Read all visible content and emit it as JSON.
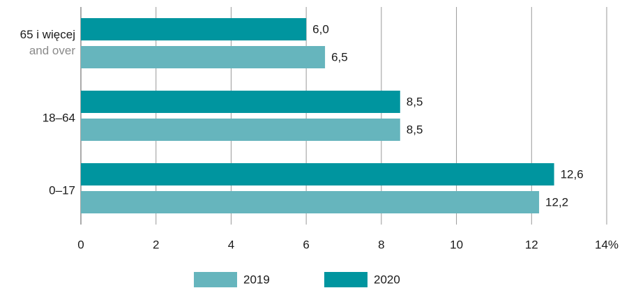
{
  "chart_data": {
    "type": "hbar",
    "categories": [
      [
        "65 i więcej",
        "and over"
      ],
      [
        "18–64"
      ],
      [
        "0–17"
      ]
    ],
    "series": [
      {
        "name": "2020",
        "color": "#00959f",
        "values": [
          6.0,
          8.5,
          12.6
        ],
        "value_labels": [
          "6,0",
          "8,5",
          "12,6"
        ]
      },
      {
        "name": "2019",
        "color": "#66b5bd",
        "values": [
          6.5,
          8.5,
          12.2
        ],
        "value_labels": [
          "6,5",
          "8,5",
          "12,2"
        ]
      }
    ],
    "xlim": [
      0,
      14
    ],
    "xticks": [
      0,
      2,
      4,
      6,
      8,
      10,
      12,
      {
        "value": 14,
        "label": "14%"
      }
    ],
    "grid": true,
    "legend": "bottom"
  }
}
